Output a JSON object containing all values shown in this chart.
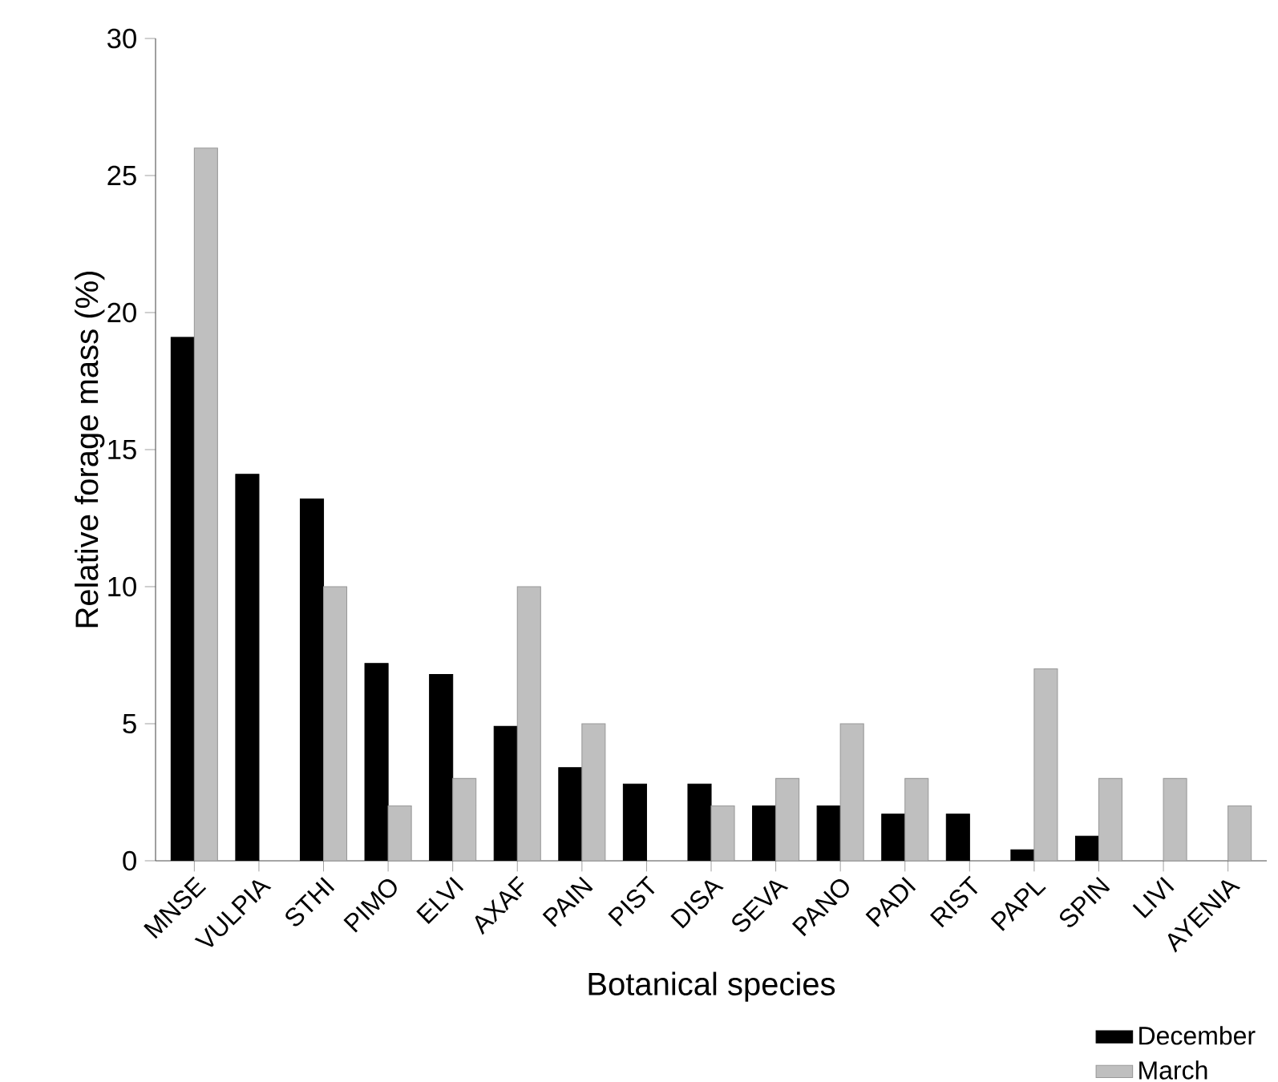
{
  "chart_data": {
    "type": "bar",
    "xlabel": "Botanical species",
    "ylabel": "Relative forage mass (%)",
    "categories": [
      "MNSE",
      "VULPIA",
      "STHI",
      "PIMO",
      "ELVI",
      "AXAF",
      "PAIN",
      "PIST",
      "DISA",
      "SEVA",
      "PANO",
      "PADI",
      "RIST",
      "PAPL",
      "SPIN",
      "LIVI",
      "AYENIA"
    ],
    "series": [
      {
        "name": "December",
        "color": "#000000",
        "values": [
          19.1,
          14.1,
          13.2,
          7.2,
          6.8,
          4.9,
          3.4,
          2.8,
          2.8,
          2.0,
          2.0,
          1.7,
          1.7,
          0.4,
          0.9,
          null,
          null
        ]
      },
      {
        "name": "March",
        "color": "#bfbfbf",
        "values": [
          26,
          null,
          10,
          2,
          3,
          10,
          5,
          null,
          2,
          3,
          5,
          3,
          null,
          7,
          3,
          3,
          2
        ]
      }
    ],
    "ylim": [
      0,
      30
    ],
    "yticks": [
      0,
      5,
      10,
      15,
      20,
      25,
      30
    ],
    "legend": "bottom right"
  }
}
